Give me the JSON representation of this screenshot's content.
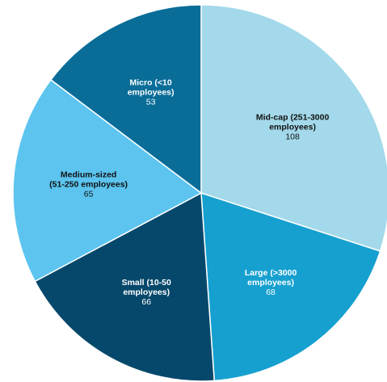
{
  "chart_data": {
    "type": "pie",
    "slices": [
      {
        "label": [
          "Mid-cap (251-3000",
          "employees)"
        ],
        "value": 108,
        "color": "#a3d9ea",
        "text_color": "#111111"
      },
      {
        "label": [
          "Large (>3000",
          "employees)"
        ],
        "value": 68,
        "color": "#16a0cf",
        "text_color": "#ffffff"
      },
      {
        "label": [
          "Small (10-50",
          "employees)"
        ],
        "value": 66,
        "color": "#06486b",
        "text_color": "#ffffff"
      },
      {
        "label": [
          "Medium-sized",
          "(51-250 employees)"
        ],
        "value": 65,
        "color": "#5cc4ef",
        "text_color": "#111111"
      },
      {
        "label": [
          "Micro (<10",
          "employees)"
        ],
        "value": 53,
        "color": "#0a6d98",
        "text_color": "#ffffff"
      }
    ]
  }
}
